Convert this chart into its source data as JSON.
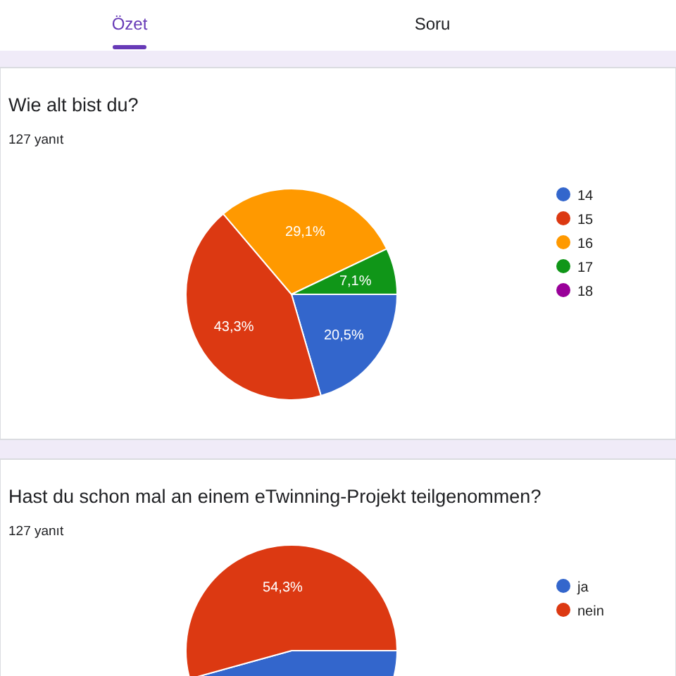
{
  "chart_data": [
    {
      "type": "other",
      "annotations": [
        "Özet",
        "Soru"
      ]
    },
    {
      "type": "pie",
      "title": "Wie alt bist du?",
      "subtitle": "127 yanıt",
      "categories": [
        "14",
        "15",
        "16",
        "17",
        "18"
      ],
      "values": [
        20.5,
        43.3,
        29.1,
        7.1,
        0
      ],
      "colors": [
        "#3366cc",
        "#dc3912",
        "#ff9900",
        "#109618",
        "#990099"
      ],
      "value_labels": [
        "20,5%",
        "43,3%",
        "29,1%",
        "7,1%",
        null
      ],
      "legend": "right"
    },
    {
      "type": "pie",
      "title": "Hast du schon mal an einem eTwinning-Projekt teilgenommen?",
      "subtitle": "127 yanıt",
      "categories": [
        "ja",
        "nein"
      ],
      "values": [
        45.7,
        54.3
      ],
      "colors": [
        "#3366cc",
        "#dc3912"
      ],
      "value_labels": [
        null,
        "54,3%"
      ],
      "legend": "right"
    }
  ]
}
